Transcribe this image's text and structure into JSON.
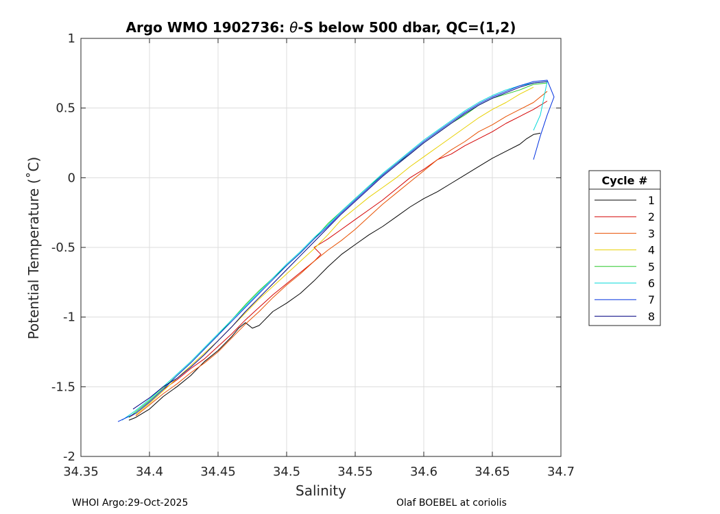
{
  "chart_data": {
    "type": "line",
    "title_main": "Argo WMO 1902736: ",
    "title_theta": "θ",
    "title_rest": "-S below 500 dbar,  QC=(1,2)",
    "xlabel": "Salinity",
    "ylabel": "Potential Temperature (˚C)",
    "xlim": [
      34.35,
      34.7
    ],
    "ylim": [
      -2,
      1
    ],
    "x_ticks": [
      34.35,
      34.4,
      34.45,
      34.5,
      34.55,
      34.6,
      34.65,
      34.7
    ],
    "x_tick_labels": [
      "34.35",
      "34.4",
      "34.45",
      "34.5",
      "34.55",
      "34.6",
      "34.65",
      "34.7"
    ],
    "y_ticks": [
      1,
      0.5,
      0,
      -0.5,
      -1,
      -1.5,
      -2
    ],
    "y_tick_labels": [
      "1",
      "0.5",
      "0",
      "-0.5",
      "-1",
      "-1.5",
      "-2"
    ],
    "grid": true,
    "legend_title": "Cycle #",
    "legend_position": "outside-right",
    "series": [
      {
        "name": "1",
        "color": "#000000",
        "points": [
          [
            34.385,
            -1.74
          ],
          [
            34.39,
            -1.72
          ],
          [
            34.4,
            -1.66
          ],
          [
            34.41,
            -1.57
          ],
          [
            34.42,
            -1.5
          ],
          [
            34.43,
            -1.42
          ],
          [
            34.44,
            -1.32
          ],
          [
            34.45,
            -1.24
          ],
          [
            34.46,
            -1.14
          ],
          [
            34.465,
            -1.08
          ],
          [
            34.47,
            -1.04
          ],
          [
            34.475,
            -1.08
          ],
          [
            34.48,
            -1.06
          ],
          [
            34.49,
            -0.96
          ],
          [
            34.5,
            -0.9
          ],
          [
            34.51,
            -0.83
          ],
          [
            34.52,
            -0.74
          ],
          [
            34.53,
            -0.64
          ],
          [
            34.54,
            -0.55
          ],
          [
            34.55,
            -0.48
          ],
          [
            34.56,
            -0.41
          ],
          [
            34.57,
            -0.35
          ],
          [
            34.58,
            -0.28
          ],
          [
            34.59,
            -0.21
          ],
          [
            34.6,
            -0.15
          ],
          [
            34.61,
            -0.1
          ],
          [
            34.62,
            -0.04
          ],
          [
            34.63,
            0.02
          ],
          [
            34.64,
            0.08
          ],
          [
            34.65,
            0.14
          ],
          [
            34.66,
            0.19
          ],
          [
            34.67,
            0.24
          ],
          [
            34.675,
            0.28
          ],
          [
            34.68,
            0.31
          ],
          [
            34.685,
            0.32
          ]
        ]
      },
      {
        "name": "2",
        "color": "#d40000",
        "points": [
          [
            34.385,
            -1.72
          ],
          [
            34.39,
            -1.69
          ],
          [
            34.4,
            -1.61
          ],
          [
            34.41,
            -1.52
          ],
          [
            34.42,
            -1.45
          ],
          [
            34.43,
            -1.37
          ],
          [
            34.44,
            -1.3
          ],
          [
            34.45,
            -1.21
          ],
          [
            34.46,
            -1.12
          ],
          [
            34.47,
            -1.02
          ],
          [
            34.48,
            -0.93
          ],
          [
            34.49,
            -0.84
          ],
          [
            34.5,
            -0.76
          ],
          [
            34.51,
            -0.68
          ],
          [
            34.52,
            -0.6
          ],
          [
            34.525,
            -0.55
          ],
          [
            34.52,
            -0.5
          ],
          [
            34.53,
            -0.44
          ],
          [
            34.54,
            -0.37
          ],
          [
            34.55,
            -0.3
          ],
          [
            34.56,
            -0.23
          ],
          [
            34.57,
            -0.16
          ],
          [
            34.58,
            -0.08
          ],
          [
            34.59,
            0.0
          ],
          [
            34.6,
            0.06
          ],
          [
            34.61,
            0.13
          ],
          [
            34.62,
            0.17
          ],
          [
            34.63,
            0.23
          ],
          [
            34.64,
            0.28
          ],
          [
            34.65,
            0.33
          ],
          [
            34.66,
            0.39
          ],
          [
            34.67,
            0.44
          ],
          [
            34.68,
            0.49
          ],
          [
            34.69,
            0.55
          ]
        ]
      },
      {
        "name": "3",
        "color": "#e85000",
        "points": [
          [
            34.39,
            -1.71
          ],
          [
            34.4,
            -1.63
          ],
          [
            34.41,
            -1.55
          ],
          [
            34.42,
            -1.48
          ],
          [
            34.43,
            -1.4
          ],
          [
            34.44,
            -1.33
          ],
          [
            34.45,
            -1.25
          ],
          [
            34.46,
            -1.15
          ],
          [
            34.47,
            -1.05
          ],
          [
            34.48,
            -0.96
          ],
          [
            34.49,
            -0.86
          ],
          [
            34.5,
            -0.77
          ],
          [
            34.51,
            -0.69
          ],
          [
            34.52,
            -0.6
          ],
          [
            34.53,
            -0.52
          ],
          [
            34.54,
            -0.45
          ],
          [
            34.55,
            -0.37
          ],
          [
            34.56,
            -0.28
          ],
          [
            34.57,
            -0.19
          ],
          [
            34.58,
            -0.11
          ],
          [
            34.59,
            -0.03
          ],
          [
            34.6,
            0.05
          ],
          [
            34.61,
            0.13
          ],
          [
            34.62,
            0.2
          ],
          [
            34.63,
            0.26
          ],
          [
            34.64,
            0.33
          ],
          [
            34.65,
            0.38
          ],
          [
            34.66,
            0.44
          ],
          [
            34.67,
            0.49
          ],
          [
            34.68,
            0.54
          ],
          [
            34.69,
            0.62
          ]
        ]
      },
      {
        "name": "4",
        "color": "#e8d000",
        "points": [
          [
            34.39,
            -1.7
          ],
          [
            34.4,
            -1.62
          ],
          [
            34.41,
            -1.53
          ],
          [
            34.42,
            -1.44
          ],
          [
            34.43,
            -1.35
          ],
          [
            34.44,
            -1.26
          ],
          [
            34.45,
            -1.17
          ],
          [
            34.46,
            -1.07
          ],
          [
            34.47,
            -0.97
          ],
          [
            34.48,
            -0.87
          ],
          [
            34.49,
            -0.78
          ],
          [
            34.5,
            -0.69
          ],
          [
            34.51,
            -0.6
          ],
          [
            34.52,
            -0.51
          ],
          [
            34.53,
            -0.41
          ],
          [
            34.54,
            -0.3
          ],
          [
            34.55,
            -0.22
          ],
          [
            34.56,
            -0.14
          ],
          [
            34.57,
            -0.07
          ],
          [
            34.58,
            0.0
          ],
          [
            34.59,
            0.08
          ],
          [
            34.6,
            0.15
          ],
          [
            34.61,
            0.22
          ],
          [
            34.62,
            0.29
          ],
          [
            34.63,
            0.36
          ],
          [
            34.64,
            0.43
          ],
          [
            34.65,
            0.49
          ],
          [
            34.66,
            0.54
          ],
          [
            34.67,
            0.6
          ],
          [
            34.68,
            0.65
          ]
        ]
      },
      {
        "name": "5",
        "color": "#28c828",
        "points": [
          [
            34.385,
            -1.72
          ],
          [
            34.39,
            -1.68
          ],
          [
            34.4,
            -1.6
          ],
          [
            34.41,
            -1.51
          ],
          [
            34.42,
            -1.42
          ],
          [
            34.43,
            -1.33
          ],
          [
            34.44,
            -1.23
          ],
          [
            34.45,
            -1.13
          ],
          [
            34.46,
            -1.02
          ],
          [
            34.47,
            -0.91
          ],
          [
            34.48,
            -0.81
          ],
          [
            34.49,
            -0.72
          ],
          [
            34.5,
            -0.63
          ],
          [
            34.51,
            -0.54
          ],
          [
            34.52,
            -0.44
          ],
          [
            34.53,
            -0.33
          ],
          [
            34.54,
            -0.24
          ],
          [
            34.55,
            -0.15
          ],
          [
            34.56,
            -0.06
          ],
          [
            34.57,
            0.02
          ],
          [
            34.58,
            0.1
          ],
          [
            34.59,
            0.17
          ],
          [
            34.6,
            0.25
          ],
          [
            34.61,
            0.32
          ],
          [
            34.62,
            0.39
          ],
          [
            34.63,
            0.45
          ],
          [
            34.64,
            0.52
          ],
          [
            34.65,
            0.57
          ],
          [
            34.66,
            0.6
          ],
          [
            34.67,
            0.63
          ],
          [
            34.68,
            0.67
          ],
          [
            34.69,
            0.68
          ]
        ]
      },
      {
        "name": "6",
        "color": "#00d8d8",
        "points": [
          [
            34.38,
            -1.74
          ],
          [
            34.39,
            -1.67
          ],
          [
            34.4,
            -1.59
          ],
          [
            34.41,
            -1.5
          ],
          [
            34.42,
            -1.41
          ],
          [
            34.43,
            -1.32
          ],
          [
            34.44,
            -1.22
          ],
          [
            34.45,
            -1.12
          ],
          [
            34.46,
            -1.02
          ],
          [
            34.47,
            -0.92
          ],
          [
            34.48,
            -0.82
          ],
          [
            34.49,
            -0.72
          ],
          [
            34.5,
            -0.62
          ],
          [
            34.51,
            -0.53
          ],
          [
            34.52,
            -0.43
          ],
          [
            34.53,
            -0.34
          ],
          [
            34.54,
            -0.24
          ],
          [
            34.55,
            -0.15
          ],
          [
            34.56,
            -0.06
          ],
          [
            34.57,
            0.03
          ],
          [
            34.58,
            0.11
          ],
          [
            34.59,
            0.19
          ],
          [
            34.6,
            0.27
          ],
          [
            34.61,
            0.34
          ],
          [
            34.62,
            0.41
          ],
          [
            34.63,
            0.48
          ],
          [
            34.64,
            0.54
          ],
          [
            34.65,
            0.59
          ],
          [
            34.66,
            0.63
          ],
          [
            34.67,
            0.66
          ],
          [
            34.68,
            0.68
          ],
          [
            34.69,
            0.69
          ],
          [
            34.685,
            0.45
          ],
          [
            34.68,
            0.34
          ]
        ]
      },
      {
        "name": "7",
        "color": "#0030e0",
        "points": [
          [
            34.377,
            -1.75
          ],
          [
            34.39,
            -1.69
          ],
          [
            34.4,
            -1.61
          ],
          [
            34.41,
            -1.52
          ],
          [
            34.42,
            -1.42
          ],
          [
            34.43,
            -1.33
          ],
          [
            34.44,
            -1.23
          ],
          [
            34.45,
            -1.13
          ],
          [
            34.46,
            -1.03
          ],
          [
            34.47,
            -0.93
          ],
          [
            34.48,
            -0.83
          ],
          [
            34.49,
            -0.73
          ],
          [
            34.5,
            -0.63
          ],
          [
            34.51,
            -0.54
          ],
          [
            34.52,
            -0.44
          ],
          [
            34.53,
            -0.35
          ],
          [
            34.54,
            -0.25
          ],
          [
            34.55,
            -0.16
          ],
          [
            34.56,
            -0.07
          ],
          [
            34.57,
            0.02
          ],
          [
            34.58,
            0.1
          ],
          [
            34.59,
            0.18
          ],
          [
            34.6,
            0.26
          ],
          [
            34.61,
            0.33
          ],
          [
            34.62,
            0.4
          ],
          [
            34.63,
            0.47
          ],
          [
            34.64,
            0.53
          ],
          [
            34.65,
            0.58
          ],
          [
            34.66,
            0.62
          ],
          [
            34.67,
            0.66
          ],
          [
            34.68,
            0.69
          ],
          [
            34.69,
            0.7
          ],
          [
            34.695,
            0.58
          ],
          [
            34.69,
            0.45
          ],
          [
            34.685,
            0.3
          ],
          [
            34.68,
            0.13
          ]
        ]
      },
      {
        "name": "8",
        "color": "#000080",
        "points": [
          [
            34.388,
            -1.66
          ],
          [
            34.4,
            -1.58
          ],
          [
            34.41,
            -1.5
          ],
          [
            34.42,
            -1.44
          ],
          [
            34.43,
            -1.36
          ],
          [
            34.44,
            -1.27
          ],
          [
            34.45,
            -1.17
          ],
          [
            34.46,
            -1.07
          ],
          [
            34.47,
            -0.96
          ],
          [
            34.48,
            -0.86
          ],
          [
            34.49,
            -0.76
          ],
          [
            34.5,
            -0.66
          ],
          [
            34.51,
            -0.56
          ],
          [
            34.52,
            -0.46
          ],
          [
            34.53,
            -0.36
          ],
          [
            34.54,
            -0.26
          ],
          [
            34.55,
            -0.17
          ],
          [
            34.56,
            -0.08
          ],
          [
            34.57,
            0.01
          ],
          [
            34.58,
            0.09
          ],
          [
            34.59,
            0.17
          ],
          [
            34.6,
            0.25
          ],
          [
            34.61,
            0.32
          ],
          [
            34.62,
            0.39
          ],
          [
            34.63,
            0.46
          ],
          [
            34.64,
            0.52
          ],
          [
            34.65,
            0.57
          ],
          [
            34.66,
            0.61
          ],
          [
            34.67,
            0.65
          ],
          [
            34.68,
            0.68
          ],
          [
            34.69,
            0.69
          ]
        ]
      }
    ]
  },
  "footer": {
    "left": "WHOI Argo:29-Oct-2025",
    "right": "Olaf BOEBEL at coriolis"
  }
}
